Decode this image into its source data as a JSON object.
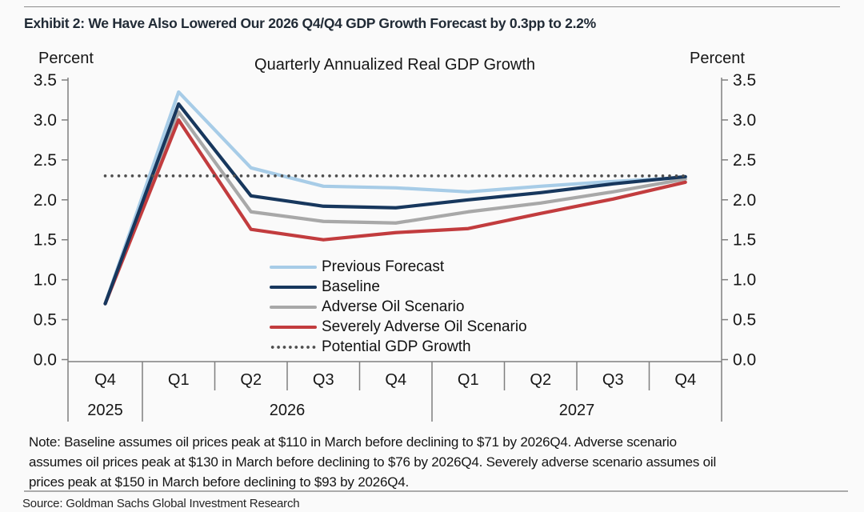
{
  "header": {
    "exhibit_title": "Exhibit 2: We Have Also Lowered Our 2026 Q4/Q4 GDP Growth Forecast by 0.3pp to 2.2%"
  },
  "chart_data": {
    "type": "line",
    "title": "Quarterly Annualized Real GDP Growth",
    "y_axis_label_left": "Percent",
    "y_axis_label_right": "Percent",
    "ylim": [
      0.0,
      3.5
    ],
    "y_ticks": [
      "3.5",
      "3.0",
      "2.5",
      "2.0",
      "1.5",
      "1.0",
      "0.5",
      "0.0"
    ],
    "x_quarters": [
      "Q4",
      "Q1",
      "Q2",
      "Q3",
      "Q4",
      "Q1",
      "Q2",
      "Q3",
      "Q4"
    ],
    "x_years": [
      {
        "label": "2025",
        "span": 1
      },
      {
        "label": "2026",
        "span": 4
      },
      {
        "label": "2027",
        "span": 4
      }
    ],
    "grid": false,
    "legend_position": "inside-bottom-center",
    "axis_color": "#7f7f7f",
    "series": [
      {
        "name": "Previous Forecast",
        "color": "#a7cce7",
        "style": "solid",
        "values": [
          0.7,
          3.35,
          2.4,
          2.17,
          2.15,
          2.1,
          2.17,
          2.23,
          2.28
        ]
      },
      {
        "name": "Baseline",
        "color": "#17375d",
        "style": "solid",
        "values": [
          0.7,
          3.2,
          2.05,
          1.92,
          1.9,
          2.0,
          2.09,
          2.2,
          2.29
        ]
      },
      {
        "name": "Adverse Oil Scenario",
        "color": "#a8a8a8",
        "style": "solid",
        "values": [
          0.7,
          3.1,
          1.85,
          1.73,
          1.71,
          1.85,
          1.96,
          2.1,
          2.26
        ]
      },
      {
        "name": "Severely Adverse Oil Scenario",
        "color": "#c23c3e",
        "style": "solid",
        "values": [
          0.7,
          3.0,
          1.63,
          1.5,
          1.59,
          1.64,
          1.83,
          2.01,
          2.22
        ]
      },
      {
        "name": "Potential GDP Growth",
        "color": "#4d4d4d",
        "style": "dotted",
        "values": [
          2.3,
          2.3,
          2.3,
          2.3,
          2.3,
          2.3,
          2.3,
          2.3,
          2.3
        ]
      }
    ]
  },
  "footer": {
    "note_lines": [
      "Note: Baseline assumes oil prices peak at $110 in March before declining to $71 by 2026Q4. Adverse scenario",
      "assumes oil prices peak at $130 in March before declining to $76 by 2026Q4. Severely adverse scenario assumes oil",
      "prices peak at $150 in March before declining to $93 by 2026Q4."
    ],
    "source": "Source: Goldman Sachs Global Investment Research"
  }
}
